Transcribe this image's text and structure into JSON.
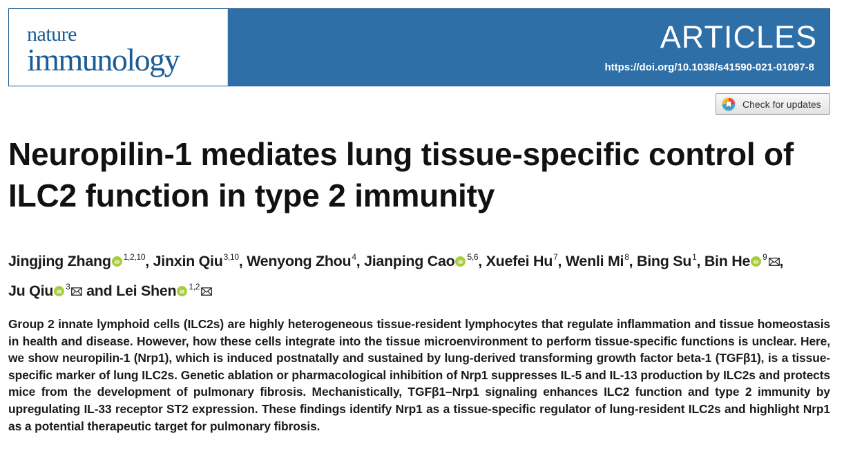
{
  "journal": {
    "name_line1": "nature",
    "name_line2": "immunology"
  },
  "header": {
    "section": "ARTICLES",
    "doi": "https://doi.org/10.1038/s41590-021-01097-8",
    "check_updates": "Check for updates"
  },
  "article": {
    "title": "Neuropilin-1 mediates lung tissue-specific control of ILC2 function in type 2 immunity",
    "authors": [
      {
        "name": "Jingjing Zhang",
        "affil": "1,2,10",
        "orcid": true,
        "corresponding": false,
        "sep": ", "
      },
      {
        "name": "Jinxin Qiu",
        "affil": "3,10",
        "orcid": false,
        "corresponding": false,
        "sep": ", "
      },
      {
        "name": "Wenyong Zhou",
        "affil": "4",
        "orcid": false,
        "corresponding": false,
        "sep": ", "
      },
      {
        "name": "Jianping Cao",
        "affil": "5,6",
        "orcid": true,
        "corresponding": false,
        "sep": ", "
      },
      {
        "name": "Xuefei Hu",
        "affil": "7",
        "orcid": false,
        "corresponding": false,
        "sep": ", "
      },
      {
        "name": "Wenli Mi",
        "affil": "8",
        "orcid": false,
        "corresponding": false,
        "sep": ", "
      },
      {
        "name": "Bing Su",
        "affil": "1",
        "orcid": false,
        "corresponding": false,
        "sep": ", "
      },
      {
        "name": "Bin He",
        "affil": "9",
        "orcid": true,
        "corresponding": true,
        "sep": ", "
      },
      {
        "name": "Ju Qiu",
        "affil": "3",
        "orcid": true,
        "corresponding": true,
        "sep": " and "
      },
      {
        "name": "Lei Shen",
        "affil": "1,2",
        "orcid": true,
        "corresponding": true,
        "sep": ""
      }
    ],
    "abstract": "Group 2 innate lymphoid cells (ILC2s) are highly heterogeneous tissue-resident lymphocytes that regulate inflammation and tissue homeostasis in health and disease. However, how these cells integrate into the tissue microenvironment to per­form tissue-specific functions is unclear. Here, we show neuropilin-1 (Nrp1), which is induced postnatally and sustained by lung-derived transforming growth factor beta-1 (TGFβ1), is a tissue-specific marker of lung ILC2s. Genetic ablation or pharma­cological inhibition of Nrp1 suppresses IL-5 and IL-13 production by ILC2s and protects mice from the development of pulmonary fibrosis. Mechanistically, TGFβ1–Nrp1 signaling enhances ILC2 function and type 2 immunity by upregulating IL-33 receptor ST2 expression. These findings identify Nrp1 as a tissue-specific regulator of lung-resident ILC2s and highlight Nrp1 as a poten­tial therapeutic target for pulmonary fibrosis."
  },
  "colors": {
    "banner": "#2d6fa6",
    "logo_text": "#1a5c96",
    "orcid": "#a6ce39",
    "text": "#1b1b1b"
  },
  "icons": {
    "orcid": "orcid-icon",
    "email": "email-icon",
    "crossmark": "crossmark-icon"
  }
}
